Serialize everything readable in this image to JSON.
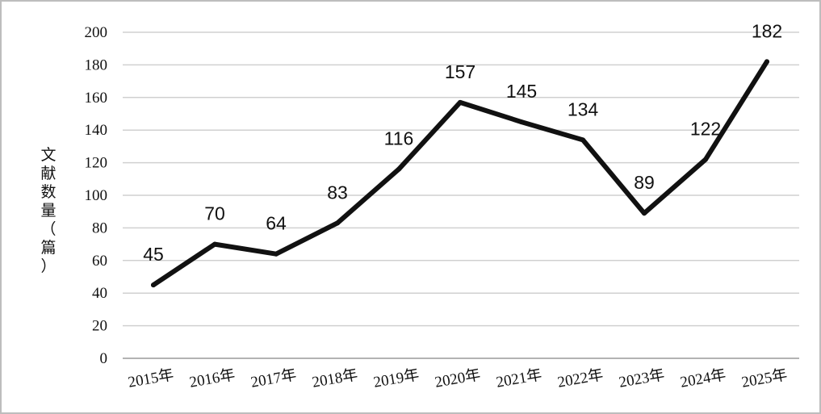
{
  "chart_data": {
    "type": "line",
    "categories": [
      "2015年",
      "2016年",
      "2017年",
      "2018年",
      "2019年",
      "2020年",
      "2021年",
      "2022年",
      "2023年",
      "2024年",
      "2025年"
    ],
    "values": [
      45,
      70,
      64,
      83,
      116,
      157,
      145,
      134,
      89,
      122,
      182
    ],
    "data_labels": [
      "45",
      "70",
      "64",
      "83",
      "116",
      "157",
      "145",
      "134",
      "89",
      "122",
      "182"
    ],
    "ylabel": "文献数量（篇）",
    "ylabel_chars": [
      "文",
      "献",
      "数",
      "量",
      "（",
      "篇",
      "）"
    ],
    "y_ticks": [
      "0",
      "20",
      "40",
      "60",
      "80",
      "100",
      "120",
      "140",
      "160",
      "180",
      "200"
    ],
    "ylim": [
      0,
      200
    ],
    "grid": true,
    "colors": {
      "line": "#111111",
      "grid": "#d0d0d0"
    }
  }
}
